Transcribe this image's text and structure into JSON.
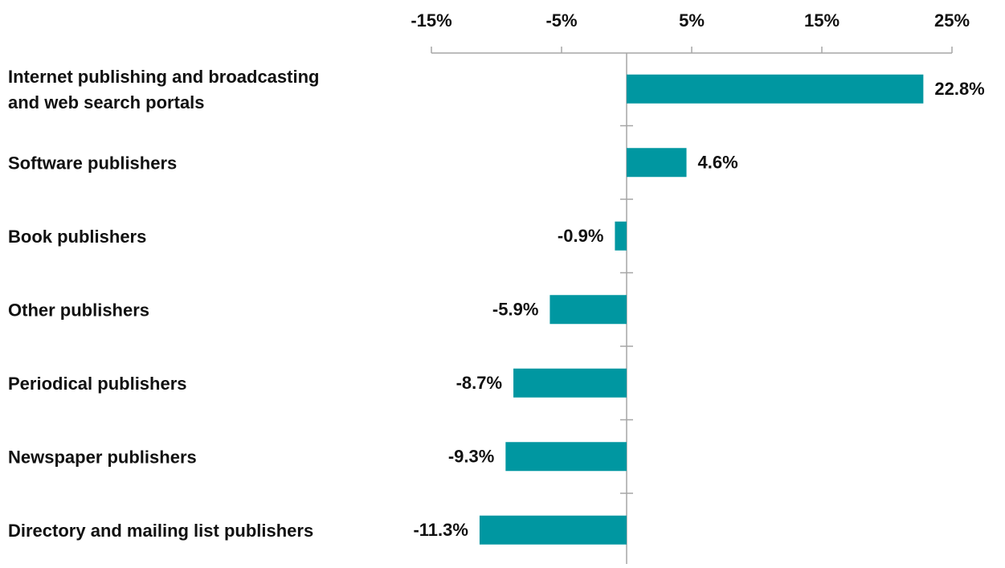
{
  "chart_data": {
    "type": "bar",
    "orientation": "horizontal",
    "categories": [
      [
        "Internet publishing and broadcasting",
        "and web search portals"
      ],
      [
        "Software publishers"
      ],
      [
        "Book publishers"
      ],
      [
        "Other publishers"
      ],
      [
        "Periodical publishers"
      ],
      [
        "Newspaper publishers"
      ],
      [
        "Directory and mailing list publishers"
      ]
    ],
    "values": [
      22.8,
      4.6,
      -0.9,
      -5.9,
      -8.7,
      -9.3,
      -11.3
    ],
    "value_labels": [
      "22.8%",
      "4.6%",
      "-0.9%",
      "-5.9%",
      "-8.7%",
      "-9.3%",
      "-11.3%"
    ],
    "x_ticks": [
      -15,
      -5,
      5,
      15,
      25
    ],
    "x_tick_labels": [
      "-15%",
      "-5%",
      "5%",
      "15%",
      "25%"
    ],
    "xlim": [
      -15,
      25
    ],
    "axis_position": "top",
    "grid": false,
    "colors": {
      "bar": "#0097A1",
      "axis": "#A6A6A6",
      "text": "#111111"
    }
  }
}
